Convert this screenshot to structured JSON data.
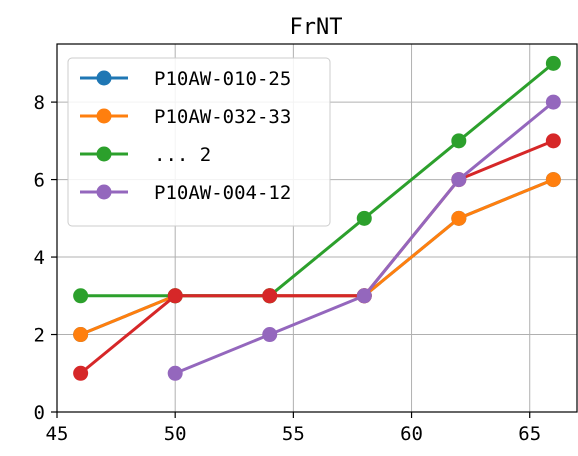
{
  "chart_data": {
    "type": "line",
    "title": "FrNT",
    "xlabel": "",
    "ylabel": "",
    "xlim": [
      45,
      67
    ],
    "ylim": [
      0,
      9.5
    ],
    "xticks": [
      45,
      50,
      55,
      60,
      65
    ],
    "yticks": [
      0,
      2,
      4,
      6,
      8
    ],
    "grid": true,
    "legend_location": "top-left",
    "series": [
      {
        "name": "P10AW-010-25",
        "color": "#1f77b4",
        "points": [
          [
            46,
            2
          ],
          [
            50,
            3
          ],
          [
            54,
            3
          ],
          [
            58,
            3
          ],
          [
            62,
            5
          ],
          [
            66,
            6
          ]
        ]
      },
      {
        "name": "P10AW-032-33",
        "color": "#ff7f0e",
        "points": [
          [
            46,
            2
          ],
          [
            50,
            3
          ],
          [
            54,
            3
          ],
          [
            58,
            3
          ],
          [
            62,
            5
          ],
          [
            66,
            6
          ]
        ]
      },
      {
        "name": "... 2",
        "color": "#2ca02c",
        "points": [
          [
            46,
            3
          ],
          [
            50,
            3
          ],
          [
            54,
            3
          ],
          [
            58,
            5
          ],
          [
            62,
            7
          ],
          [
            66,
            9
          ]
        ]
      },
      {
        "name": "",
        "color": "#d62728",
        "points": [
          [
            46,
            1
          ],
          [
            50,
            3
          ],
          [
            54,
            3
          ],
          [
            58,
            3
          ],
          [
            62,
            6
          ],
          [
            66,
            7
          ]
        ]
      },
      {
        "name": "P10AW-004-12",
        "color": "#9467bd",
        "points": [
          [
            50,
            1
          ],
          [
            54,
            2
          ],
          [
            58,
            3
          ],
          [
            62,
            6
          ],
          [
            66,
            8
          ]
        ]
      }
    ]
  }
}
